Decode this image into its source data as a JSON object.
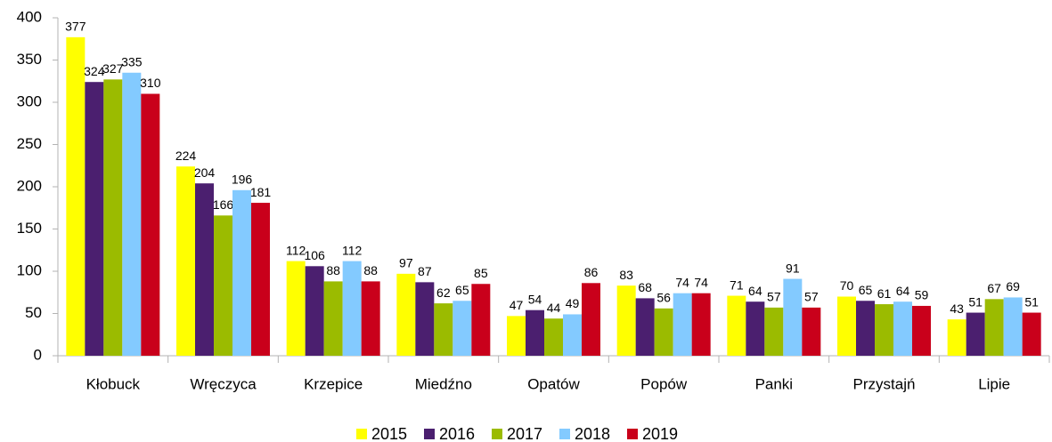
{
  "chart_data": {
    "type": "bar",
    "categories": [
      "Kłobuck",
      "Wręczyca",
      "Krzepice",
      "Miedźno",
      "Opatów",
      "Popów",
      "Panki",
      "Przystajń",
      "Lipie"
    ],
    "series": [
      {
        "name": "2015",
        "color": "#ffff00",
        "values": [
          377,
          224,
          112,
          97,
          47,
          83,
          71,
          70,
          43
        ]
      },
      {
        "name": "2016",
        "color": "#4b1f6f",
        "values": [
          324,
          204,
          106,
          87,
          54,
          68,
          64,
          65,
          51
        ]
      },
      {
        "name": "2017",
        "color": "#9bbb00",
        "values": [
          327,
          166,
          88,
          62,
          44,
          56,
          57,
          61,
          67
        ]
      },
      {
        "name": "2018",
        "color": "#83caff",
        "values": [
          335,
          196,
          112,
          65,
          49,
          74,
          91,
          64,
          69
        ]
      },
      {
        "name": "2019",
        "color": "#c9001b",
        "values": [
          310,
          181,
          88,
          85,
          86,
          74,
          57,
          59,
          51
        ]
      }
    ],
    "ylim": [
      0,
      400
    ],
    "yticks": [
      0,
      50,
      100,
      150,
      200,
      250,
      300,
      350,
      400
    ],
    "legend": "bottom"
  }
}
